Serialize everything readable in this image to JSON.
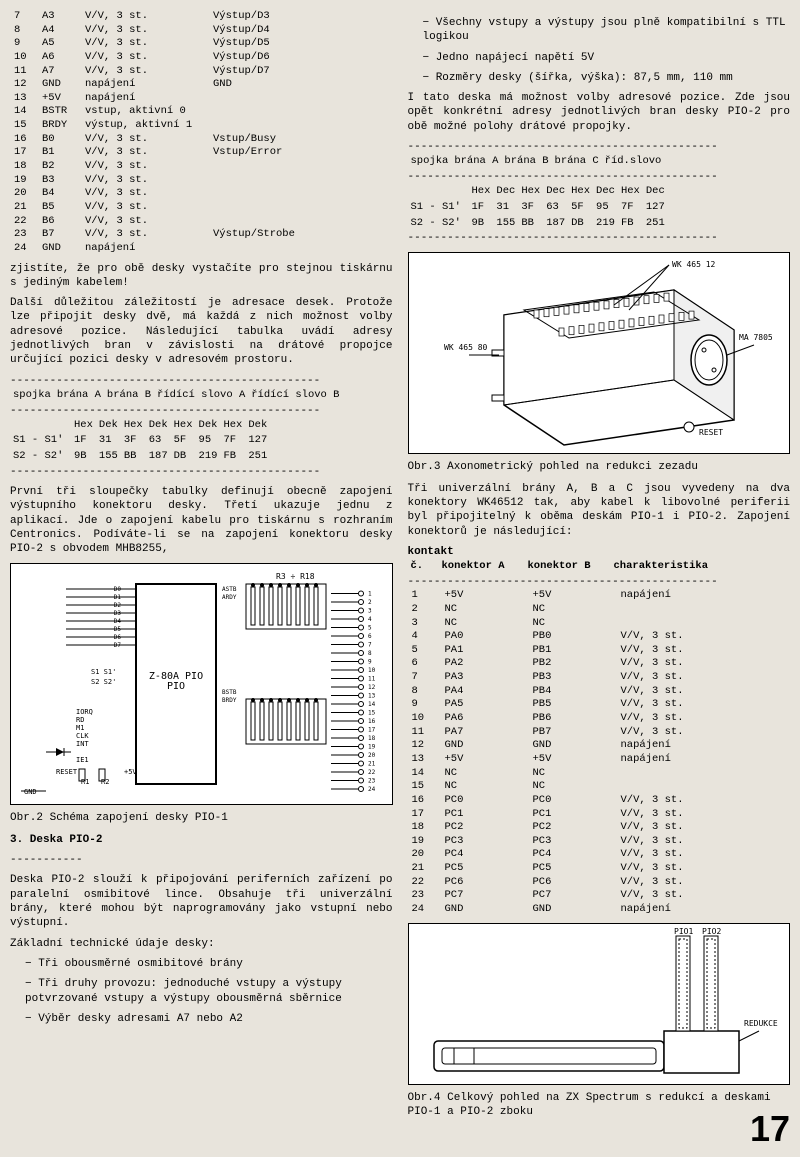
{
  "left": {
    "pin_rows": [
      [
        "7",
        "A3",
        "V/V, 3 st.",
        "Výstup/D3"
      ],
      [
        "8",
        "A4",
        "V/V, 3 st.",
        "Výstup/D4"
      ],
      [
        "9",
        "A5",
        "V/V, 3 st.",
        "Výstup/D5"
      ],
      [
        "10",
        "A6",
        "V/V, 3 st.",
        "Výstup/D6"
      ],
      [
        "11",
        "A7",
        "V/V, 3 st.",
        "Výstup/D7"
      ],
      [
        "12",
        "GND",
        "napájení",
        "GND"
      ],
      [
        "",
        "",
        "",
        ""
      ],
      [
        "13",
        "+5V",
        "napájení",
        ""
      ],
      [
        "14",
        "BSTR",
        "vstup, aktivní 0",
        ""
      ],
      [
        "15",
        "BRDY",
        "výstup, aktivní 1",
        ""
      ],
      [
        "16",
        "B0",
        "V/V, 3 st.",
        "Vstup/Busy"
      ],
      [
        "17",
        "B1",
        "V/V, 3 st.",
        "Vstup/Error"
      ],
      [
        "18",
        "B2",
        "V/V, 3 st.",
        ""
      ],
      [
        "19",
        "B3",
        "V/V, 3 st.",
        ""
      ],
      [
        "20",
        "B4",
        "V/V, 3 st.",
        ""
      ],
      [
        "21",
        "B5",
        "V/V, 3 st.",
        ""
      ],
      [
        "22",
        "B6",
        "V/V, 3 st.",
        ""
      ],
      [
        "23",
        "B7",
        "V/V, 3 st.",
        "Výstup/Strobe"
      ],
      [
        "24",
        "GND",
        "napájení",
        ""
      ]
    ],
    "para1": "zjistíte, že pro obě desky vystačíte pro stejnou tiskárnu s jediným kabelem!",
    "para2": "Další důležitou záležitostí je adresace desek. Protože lze připojit desky dvě, má každá z nich možnost volby adresové pozice. Následující tabulka uvádí adresy jednotlivých bran v závislosti na drátové propojce určující pozici desky v adresovém prostoru.",
    "addr_head": [
      "spojka",
      "brána A",
      "brána B",
      "řídící slovo A",
      "řídící slovo B"
    ],
    "addr_sub": [
      "",
      "Hex",
      "Dek",
      "Hex",
      "Dek",
      "Hex",
      "Dek",
      "Hex",
      "Dek"
    ],
    "addr_rows": [
      [
        "S1 - S1'",
        "1F",
        "31",
        "3F",
        "63",
        "5F",
        "95",
        "7F",
        "127"
      ],
      [
        "S2 - S2'",
        "9B",
        "155",
        "BB",
        "187",
        "DB",
        "219",
        "FB",
        "251"
      ]
    ],
    "para3": "První tři sloupečky tabulky definují obecně zapojení výstupního konektoru desky. Třetí ukazuje jednu z aplikací. Jde o zapojení kabelu pro tiskárnu s rozhraním Centronics. Podíváte-li se na zapojení konektoru desky PIO-2 s obvodem MHB8255,",
    "fig2_labels": {
      "chip": "Z-80A PIO",
      "r": "R3 ÷ R18",
      "s1": "S1 S1'",
      "s2": "S2 S2'",
      "iorq": "IORQ",
      "rd": "RD",
      "m1": "M1",
      "clk": "CLK",
      "int": "INT",
      "iei": "IE1",
      "reset": "RESET",
      "gnd": "GND",
      "r1": "R1",
      "r2": "R2",
      "v5": "+5V",
      "astb": "ASTB",
      "ardy": "ARDY",
      "bstb": "BSTB",
      "brdy": "BRDY"
    },
    "fig2_data_pins": [
      "D0",
      "D1",
      "D2",
      "D3",
      "D4",
      "D5",
      "D6",
      "D7",
      "B/Ā",
      "C̄/D",
      "C̄Ē",
      "IE0",
      "IE1"
    ],
    "fig2_a_pins": [
      "A0",
      "A1",
      "A2",
      "A3",
      "A4",
      "A5",
      "A6",
      "A7"
    ],
    "fig2_b_pins": [
      "B0",
      "B1",
      "B2",
      "B3",
      "B4",
      "B5",
      "B6",
      "B7"
    ],
    "caption2": "Obr.2 Schéma zapojení desky PIO-1",
    "section3": "3. Deska PIO-2",
    "para4": "Deska PIO-2 slouží k připojování periferních zařízení po paralelní osmibitové lince. Obsahuje tři univerzální brány, které mohou být naprogramovány jako vstupní nebo výstupní.",
    "para5": "Základní technické údaje desky:",
    "bullets": [
      "− Tři obousměrné osmibitové brány",
      "− Tři druhy provozu: jednoduché vstupy a výstupy potvrzované vstupy a výstupy obousměrná sběrnice",
      "− Výběr desky adresami A7 nebo A2"
    ]
  },
  "right": {
    "bullets_top": [
      "− Všechny vstupy a výstupy jsou plně kompatibilní s TTL logikou",
      "− Jedno napájecí napětí 5V",
      "− Rozměry desky (šířka, výška): 87,5 mm, 110 mm"
    ],
    "para1": "I tato deska má možnost volby adresové pozice. Zde jsou opět konkrétní adresy jednotlivých bran desky PIO-2 pro obě možné polohy drátové propojky.",
    "addr_head": [
      "spojka",
      "brána A",
      "brána B",
      "brána C",
      "říd.slovo"
    ],
    "addr_sub": [
      "",
      "Hex",
      "Dec",
      "Hex",
      "Dec",
      "Hex",
      "Dec",
      "Hex",
      "Dec"
    ],
    "addr_rows": [
      [
        "S1 - S1'",
        "1F",
        "31",
        "3F",
        "63",
        "5F",
        "95",
        "7F",
        "127"
      ],
      [
        "S2 - S2'",
        "9B",
        "155",
        "BB",
        "187",
        "DB",
        "219",
        "FB",
        "251"
      ]
    ],
    "fig3_labels": {
      "wk1": "WK 465 12",
      "wk2": "WK 465 80",
      "ma": "MA 7805",
      "reset": "RESET"
    },
    "caption3": "Obr.3 Axonometrický pohled na redukci zezadu",
    "para2": "Tři univerzální brány A, B a C jsou vyvedeny na dva konektory WK46512 tak, aby kabel k libovolné periferii byl připojitelný k oběma deskám PIO-1 i PIO-2. Zapojení konektorů je následující:",
    "kontakt_head": "kontakt",
    "conn_head": [
      "č.",
      "konektor A",
      "konektor B",
      "charakteristika"
    ],
    "conn_rows": [
      [
        "1",
        "+5V",
        "+5V",
        "napájení"
      ],
      [
        "2",
        "NC",
        "NC",
        ""
      ],
      [
        "3",
        "NC",
        "NC",
        ""
      ],
      [
        "4",
        "PA0",
        "PB0",
        "V/V, 3 st."
      ],
      [
        "5",
        "PA1",
        "PB1",
        "V/V, 3 st."
      ],
      [
        "6",
        "PA2",
        "PB2",
        "V/V, 3 st."
      ],
      [
        "7",
        "PA3",
        "PB3",
        "V/V, 3 st."
      ],
      [
        "8",
        "PA4",
        "PB4",
        "V/V, 3 st."
      ],
      [
        "9",
        "PA5",
        "PB5",
        "V/V, 3 st."
      ],
      [
        "10",
        "PA6",
        "PB6",
        "V/V, 3 st."
      ],
      [
        "11",
        "PA7",
        "PB7",
        "V/V, 3 st."
      ],
      [
        "12",
        "GND",
        "GND",
        "napájení"
      ],
      [
        "",
        "",
        "",
        ""
      ],
      [
        "13",
        "+5V",
        "+5V",
        "napájení"
      ],
      [
        "14",
        "NC",
        "NC",
        ""
      ],
      [
        "15",
        "NC",
        "NC",
        ""
      ],
      [
        "16",
        "PC0",
        "PC0",
        "V/V, 3 st."
      ],
      [
        "17",
        "PC1",
        "PC1",
        "V/V, 3 st."
      ],
      [
        "18",
        "PC2",
        "PC2",
        "V/V, 3 st."
      ],
      [
        "19",
        "PC3",
        "PC3",
        "V/V, 3 st."
      ],
      [
        "20",
        "PC4",
        "PC4",
        "V/V, 3 st."
      ],
      [
        "21",
        "PC5",
        "PC5",
        "V/V, 3 st."
      ],
      [
        "22",
        "PC6",
        "PC6",
        "V/V, 3 st."
      ],
      [
        "23",
        "PC7",
        "PC7",
        "V/V, 3 st."
      ],
      [
        "24",
        "GND",
        "GND",
        "napájení"
      ]
    ],
    "fig4_labels": {
      "pio1": "PIO1",
      "pio2": "PIO2",
      "redukce": "REDUKCE"
    },
    "caption4": "Obr.4 Celkový pohled na ZX Spectrum s redukcí a deskami PIO-1 a PIO-2 zboku"
  },
  "page_number": "17"
}
